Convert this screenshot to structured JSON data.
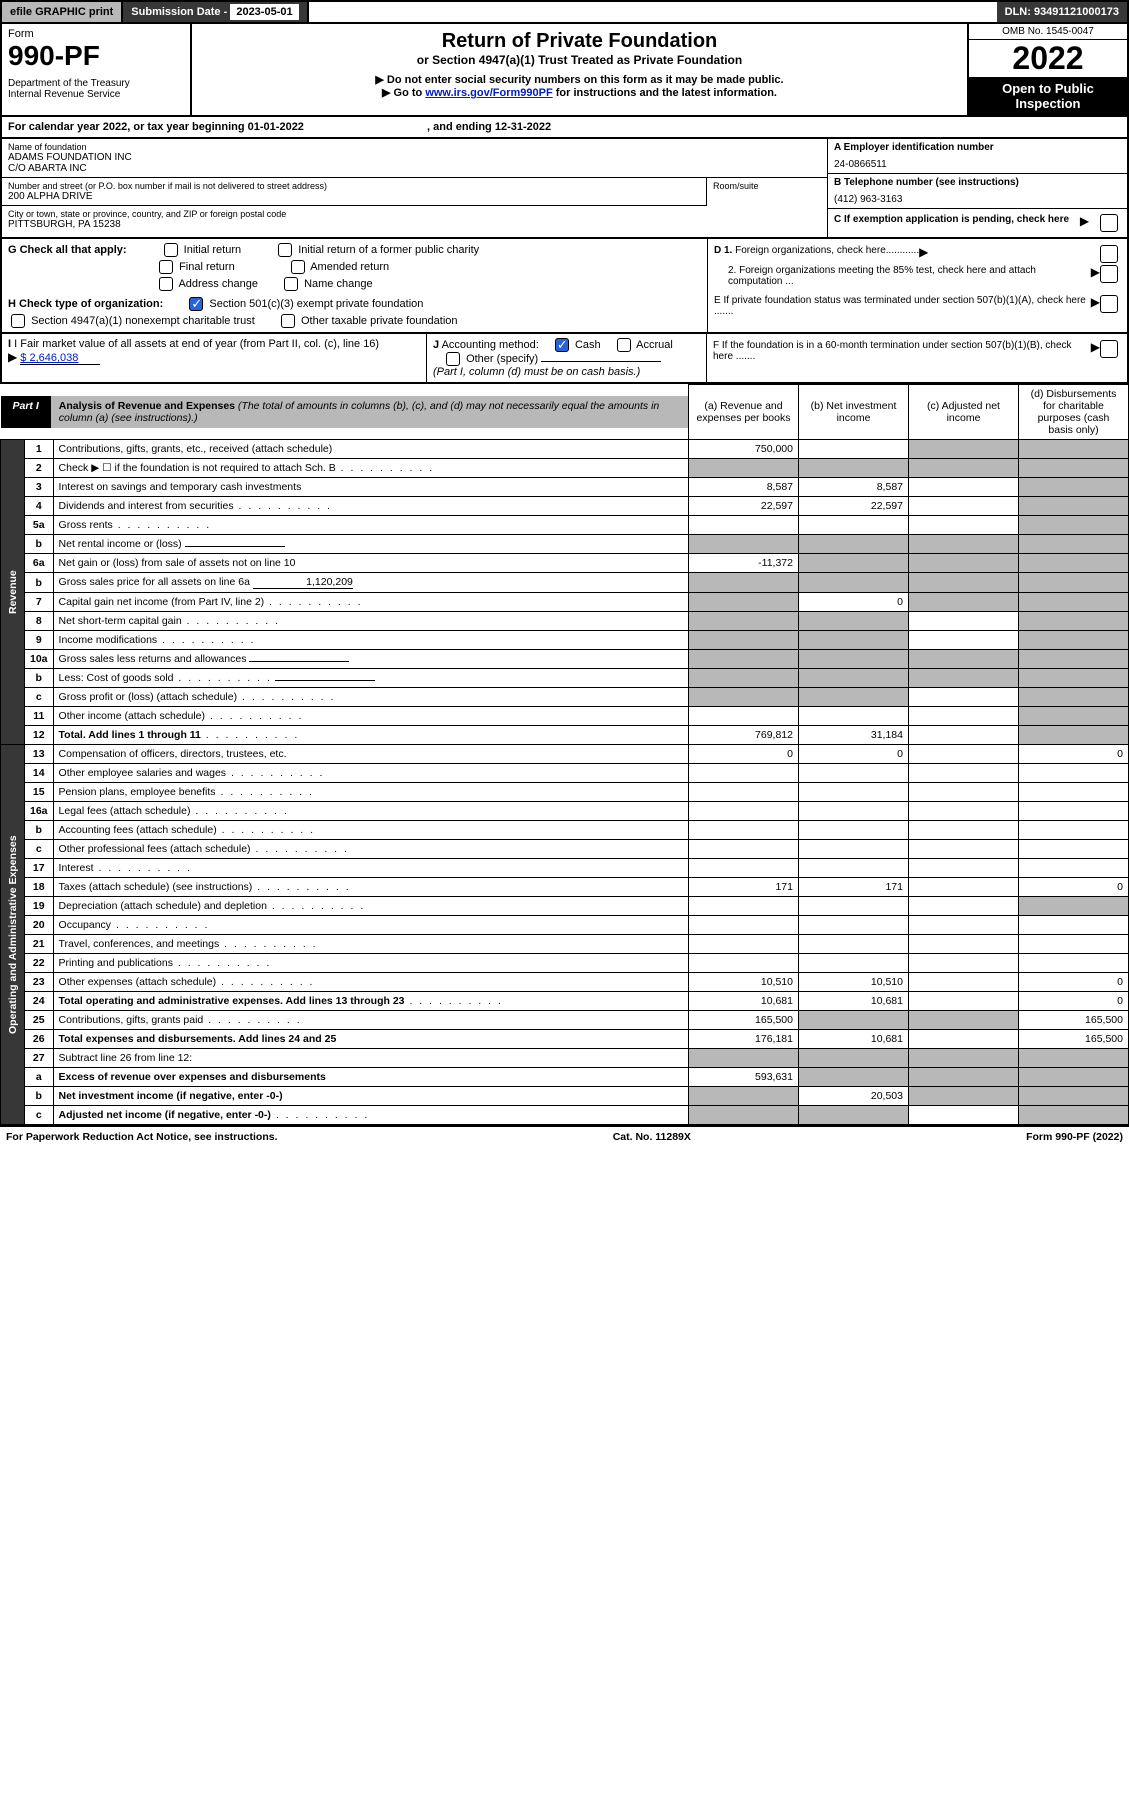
{
  "topbar": {
    "efile": "efile GRAPHIC print",
    "sub_label": "Submission Date - ",
    "sub_date": "2023-05-01",
    "dln": "DLN: 93491121000173"
  },
  "header": {
    "form_word": "Form",
    "form_num": "990-PF",
    "dept": "Department of the Treasury",
    "irs": "Internal Revenue Service",
    "title": "Return of Private Foundation",
    "subtitle": "or Section 4947(a)(1) Trust Treated as Private Foundation",
    "instr1": "▶ Do not enter social security numbers on this form as it may be made public.",
    "instr2_pre": "▶ Go to ",
    "instr2_link": "www.irs.gov/Form990PF",
    "instr2_post": " for instructions and the latest information.",
    "omb": "OMB No. 1545-0047",
    "year": "2022",
    "open": "Open to Public Inspection"
  },
  "cal_year": {
    "pre": "For calendar year 2022, or tax year beginning ",
    "begin": "01-01-2022",
    "mid": " , and ending ",
    "end": "12-31-2022"
  },
  "id": {
    "name_lbl": "Name of foundation",
    "name1": "ADAMS FOUNDATION INC",
    "name2": "C/O ABARTA INC",
    "addr_lbl": "Number and street (or P.O. box number if mail is not delivered to street address)",
    "addr": "200 ALPHA DRIVE",
    "room_lbl": "Room/suite",
    "city_lbl": "City or town, state or province, country, and ZIP or foreign postal code",
    "city": "PITTSBURGH, PA  15238",
    "a_lbl": "A Employer identification number",
    "ein": "24-0866511",
    "b_lbl": "B Telephone number (see instructions)",
    "phone": "(412) 963-3163",
    "c_lbl": "C If exemption application is pending, check here"
  },
  "checks": {
    "g_lbl": "G Check all that apply:",
    "g_opts": [
      "Initial return",
      "Initial return of a former public charity",
      "Final return",
      "Amended return",
      "Address change",
      "Name change"
    ],
    "h_lbl": "H Check type of organization:",
    "h1": "Section 501(c)(3) exempt private foundation",
    "h2": "Section 4947(a)(1) nonexempt charitable trust",
    "h3": "Other taxable private foundation",
    "i_lbl": "I Fair market value of all assets at end of year (from Part II, col. (c), line 16)",
    "i_val": "$  2,646,038",
    "j_lbl": "J Accounting method:",
    "j_cash": "Cash",
    "j_accr": "Accrual",
    "j_other": "Other (specify)",
    "j_note": "(Part I, column (d) must be on cash basis.)",
    "d1": "D 1. Foreign organizations, check here............",
    "d2": "2. Foreign organizations meeting the 85% test, check here and attach computation ...",
    "e": "E  If private foundation status was terminated under section 507(b)(1)(A), check here .......",
    "f": "F  If the foundation is in a 60-month termination under section 507(b)(1)(B), check here .......",
    "arrow": "▶"
  },
  "part1": {
    "lbl": "Part I",
    "title": "Analysis of Revenue and Expenses",
    "note": " (The total of amounts in columns (b), (c), and (d) may not necessarily equal the amounts in column (a) (see instructions).)",
    "col_a": "(a) Revenue and expenses per books",
    "col_b": "(b) Net investment income",
    "col_c": "(c) Adjusted net income",
    "col_d": "(d) Disbursements for charitable purposes (cash basis only)"
  },
  "side": {
    "rev": "Revenue",
    "exp": "Operating and Administrative Expenses"
  },
  "rows": [
    {
      "n": "1",
      "d": "Contributions, gifts, grants, etc., received (attach schedule)",
      "a": "750,000",
      "b": "",
      "c": "s",
      "dd": "s"
    },
    {
      "n": "2",
      "d": "Check ▶ ☐ if the foundation is not required to attach Sch. B",
      "a": "s",
      "b": "s",
      "c": "s",
      "dd": "s",
      "dots": 1
    },
    {
      "n": "3",
      "d": "Interest on savings and temporary cash investments",
      "a": "8,587",
      "b": "8,587",
      "c": "",
      "dd": "s"
    },
    {
      "n": "4",
      "d": "Dividends and interest from securities",
      "a": "22,597",
      "b": "22,597",
      "c": "",
      "dd": "s",
      "dots": 1
    },
    {
      "n": "5a",
      "d": "Gross rents",
      "a": "",
      "b": "",
      "c": "",
      "dd": "s",
      "dots": 1
    },
    {
      "n": "b",
      "d": "Net rental income or (loss)",
      "a": "s",
      "b": "s",
      "c": "s",
      "dd": "s",
      "inline": 1
    },
    {
      "n": "6a",
      "d": "Net gain or (loss) from sale of assets not on line 10",
      "a": "-11,372",
      "b": "s",
      "c": "s",
      "dd": "s"
    },
    {
      "n": "b",
      "d": "Gross sales price for all assets on line 6a",
      "a": "s",
      "b": "s",
      "c": "s",
      "dd": "s",
      "inline": 1,
      "ival": "1,120,209"
    },
    {
      "n": "7",
      "d": "Capital gain net income (from Part IV, line 2)",
      "a": "s",
      "b": "0",
      "c": "s",
      "dd": "s",
      "dots": 1
    },
    {
      "n": "8",
      "d": "Net short-term capital gain",
      "a": "s",
      "b": "s",
      "c": "",
      "dd": "s",
      "dots": 1
    },
    {
      "n": "9",
      "d": "Income modifications",
      "a": "s",
      "b": "s",
      "c": "",
      "dd": "s",
      "dots": 1
    },
    {
      "n": "10a",
      "d": "Gross sales less returns and allowances",
      "a": "s",
      "b": "s",
      "c": "s",
      "dd": "s",
      "inline": 1
    },
    {
      "n": "b",
      "d": "Less: Cost of goods sold",
      "a": "s",
      "b": "s",
      "c": "s",
      "dd": "s",
      "inline": 1,
      "dots": 1
    },
    {
      "n": "c",
      "d": "Gross profit or (loss) (attach schedule)",
      "a": "s",
      "b": "s",
      "c": "",
      "dd": "s",
      "dots": 1
    },
    {
      "n": "11",
      "d": "Other income (attach schedule)",
      "a": "",
      "b": "",
      "c": "",
      "dd": "s",
      "dots": 1
    },
    {
      "n": "12",
      "d": "Total. Add lines 1 through 11",
      "a": "769,812",
      "b": "31,184",
      "c": "",
      "dd": "s",
      "b1": 1,
      "dots": 1
    },
    {
      "n": "13",
      "d": "Compensation of officers, directors, trustees, etc.",
      "a": "0",
      "b": "0",
      "c": "",
      "dd": "0"
    },
    {
      "n": "14",
      "d": "Other employee salaries and wages",
      "a": "",
      "b": "",
      "c": "",
      "dd": "",
      "dots": 1
    },
    {
      "n": "15",
      "d": "Pension plans, employee benefits",
      "a": "",
      "b": "",
      "c": "",
      "dd": "",
      "dots": 1
    },
    {
      "n": "16a",
      "d": "Legal fees (attach schedule)",
      "a": "",
      "b": "",
      "c": "",
      "dd": "",
      "dots": 1
    },
    {
      "n": "b",
      "d": "Accounting fees (attach schedule)",
      "a": "",
      "b": "",
      "c": "",
      "dd": "",
      "dots": 1
    },
    {
      "n": "c",
      "d": "Other professional fees (attach schedule)",
      "a": "",
      "b": "",
      "c": "",
      "dd": "",
      "dots": 1
    },
    {
      "n": "17",
      "d": "Interest",
      "a": "",
      "b": "",
      "c": "",
      "dd": "",
      "dots": 1
    },
    {
      "n": "18",
      "d": "Taxes (attach schedule) (see instructions)",
      "a": "171",
      "b": "171",
      "c": "",
      "dd": "0",
      "dots": 1
    },
    {
      "n": "19",
      "d": "Depreciation (attach schedule) and depletion",
      "a": "",
      "b": "",
      "c": "",
      "dd": "s",
      "dots": 1
    },
    {
      "n": "20",
      "d": "Occupancy",
      "a": "",
      "b": "",
      "c": "",
      "dd": "",
      "dots": 1
    },
    {
      "n": "21",
      "d": "Travel, conferences, and meetings",
      "a": "",
      "b": "",
      "c": "",
      "dd": "",
      "dots": 1
    },
    {
      "n": "22",
      "d": "Printing and publications",
      "a": "",
      "b": "",
      "c": "",
      "dd": "",
      "dots": 1
    },
    {
      "n": "23",
      "d": "Other expenses (attach schedule)",
      "a": "10,510",
      "b": "10,510",
      "c": "",
      "dd": "0",
      "dots": 1
    },
    {
      "n": "24",
      "d": "Total operating and administrative expenses. Add lines 13 through 23",
      "a": "10,681",
      "b": "10,681",
      "c": "",
      "dd": "0",
      "b1": 1,
      "dots": 1
    },
    {
      "n": "25",
      "d": "Contributions, gifts, grants paid",
      "a": "165,500",
      "b": "s",
      "c": "s",
      "dd": "165,500",
      "dots": 1
    },
    {
      "n": "26",
      "d": "Total expenses and disbursements. Add lines 24 and 25",
      "a": "176,181",
      "b": "10,681",
      "c": "",
      "dd": "165,500",
      "b1": 1
    },
    {
      "n": "27",
      "d": "Subtract line 26 from line 12:",
      "a": "s",
      "b": "s",
      "c": "s",
      "dd": "s"
    },
    {
      "n": "a",
      "d": "Excess of revenue over expenses and disbursements",
      "a": "593,631",
      "b": "s",
      "c": "s",
      "dd": "s",
      "b1": 1
    },
    {
      "n": "b",
      "d": "Net investment income (if negative, enter -0-)",
      "a": "s",
      "b": "20,503",
      "c": "s",
      "dd": "s",
      "b1": 1
    },
    {
      "n": "c",
      "d": "Adjusted net income (if negative, enter -0-)",
      "a": "s",
      "b": "s",
      "c": "",
      "dd": "s",
      "b1": 1,
      "dots": 1
    }
  ],
  "footer": {
    "left": "For Paperwork Reduction Act Notice, see instructions.",
    "mid": "Cat. No. 11289X",
    "right": "Form 990-PF (2022)"
  }
}
